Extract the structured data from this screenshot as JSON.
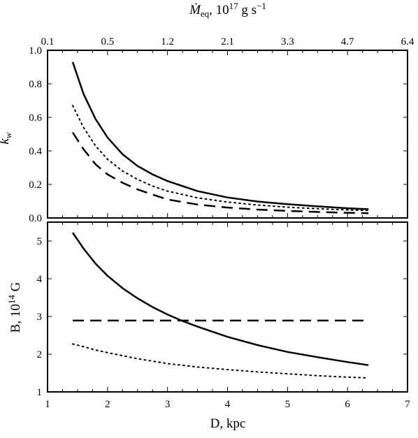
{
  "chart_data": [
    {
      "type": "line",
      "panel": "top",
      "ylabel_main": "k",
      "ylabel_sub": "w",
      "xlim": [
        1,
        7
      ],
      "ylim": [
        0.0,
        1.0
      ],
      "yticks": [
        "0.0",
        "0.2",
        "0.4",
        "0.6",
        "0.8",
        "1.0"
      ],
      "top_axis": {
        "label_prefix": "Ṁ",
        "label_sub": "eq",
        "label_mid": ", 10",
        "label_sup1": "17",
        "label_mid2": " g s",
        "label_sup2": "−1",
        "ticks": [
          "0.1",
          "0.5",
          "1.2",
          "2.1",
          "3.3",
          "4.7",
          "6.4"
        ]
      },
      "series": [
        {
          "style": "solid",
          "x": [
            1.42,
            1.6,
            1.8,
            2.0,
            2.25,
            2.5,
            2.75,
            3.0,
            3.5,
            4.0,
            4.5,
            5.0,
            5.5,
            6.0,
            6.35
          ],
          "y": [
            0.93,
            0.74,
            0.59,
            0.48,
            0.38,
            0.31,
            0.26,
            0.22,
            0.16,
            0.122,
            0.098,
            0.082,
            0.069,
            0.058,
            0.052
          ]
        },
        {
          "style": "dotted",
          "x": [
            1.42,
            1.6,
            1.8,
            2.0,
            2.25,
            2.5,
            2.75,
            3.0,
            3.5,
            4.0,
            4.5,
            5.0,
            5.5,
            6.0,
            6.35
          ],
          "y": [
            0.67,
            0.54,
            0.43,
            0.35,
            0.28,
            0.23,
            0.19,
            0.16,
            0.12,
            0.095,
            0.077,
            0.064,
            0.055,
            0.048,
            0.044
          ]
        },
        {
          "style": "dashed",
          "x": [
            1.42,
            1.6,
            1.8,
            2.0,
            2.25,
            2.5,
            2.75,
            3.0,
            3.5,
            4.0,
            4.5,
            5.0,
            5.5,
            6.0,
            6.35
          ],
          "y": [
            0.51,
            0.41,
            0.32,
            0.26,
            0.21,
            0.17,
            0.14,
            0.11,
            0.08,
            0.062,
            0.05,
            0.042,
            0.036,
            0.031,
            0.028
          ]
        }
      ]
    },
    {
      "type": "line",
      "panel": "bottom",
      "xlabel": "D, kpc",
      "ylabel_main": "B, 10",
      "ylabel_sup": "14",
      "ylabel_unit": " G",
      "xlim": [
        1,
        7
      ],
      "ylim": [
        1,
        5.5
      ],
      "xticks": [
        "1",
        "2",
        "3",
        "4",
        "5",
        "6",
        "7"
      ],
      "yticks": [
        "1",
        "2",
        "3",
        "4",
        "5"
      ],
      "series": [
        {
          "style": "solid",
          "x": [
            1.42,
            1.6,
            1.8,
            2.0,
            2.25,
            2.5,
            2.75,
            3.0,
            3.25,
            3.5,
            4.0,
            4.5,
            5.0,
            5.5,
            6.0,
            6.35
          ],
          "y": [
            5.22,
            4.8,
            4.4,
            4.08,
            3.75,
            3.48,
            3.25,
            3.05,
            2.88,
            2.73,
            2.46,
            2.24,
            2.06,
            1.92,
            1.79,
            1.71
          ]
        },
        {
          "style": "dotted",
          "x": [
            1.42,
            1.6,
            1.8,
            2.0,
            2.5,
            3.0,
            3.5,
            4.0,
            4.5,
            5.0,
            5.5,
            6.0,
            6.35
          ],
          "y": [
            2.27,
            2.2,
            2.11,
            2.04,
            1.88,
            1.75,
            1.66,
            1.59,
            1.53,
            1.48,
            1.43,
            1.39,
            1.37
          ]
        },
        {
          "style": "dashed",
          "x": [
            1.42,
            6.35
          ],
          "y": [
            2.89,
            2.89
          ]
        }
      ]
    }
  ],
  "colors": {
    "line": "#000000",
    "frame": "#000000",
    "background": "#ffffff"
  }
}
